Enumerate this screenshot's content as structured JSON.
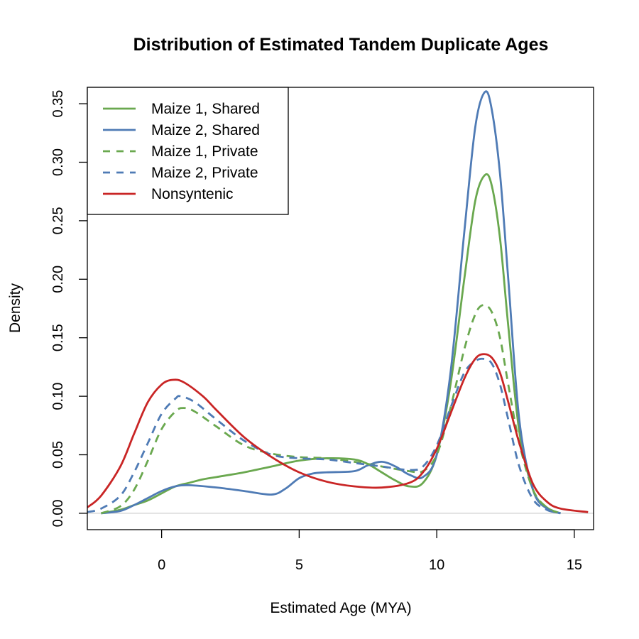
{
  "chart_data": {
    "type": "line",
    "title": "Distribution of Estimated Tandem Duplicate Ages",
    "xlabel": "Estimated Age (MYA)",
    "ylabel": "Density",
    "xlim": [
      -2.7,
      15.7
    ],
    "ylim": [
      -0.014,
      0.364
    ],
    "x_ticks": [
      0,
      5,
      10,
      15
    ],
    "x_tick_labels": [
      "0",
      "5",
      "10",
      "15"
    ],
    "y_ticks": [
      0.0,
      0.05,
      0.1,
      0.15,
      0.2,
      0.25,
      0.3,
      0.35
    ],
    "y_tick_labels": [
      "0.00",
      "0.05",
      "0.10",
      "0.15",
      "0.20",
      "0.25",
      "0.30",
      "0.35"
    ],
    "baseline_y": 0,
    "legend_position": "top-left",
    "series": [
      {
        "name": "Maize 1, Shared",
        "color": "#6aa84f",
        "dash": "solid",
        "points": [
          [
            -2.2,
            0.0
          ],
          [
            -1.5,
            0.003
          ],
          [
            -1.0,
            0.007
          ],
          [
            -0.5,
            0.011
          ],
          [
            0,
            0.017
          ],
          [
            0.5,
            0.023
          ],
          [
            1,
            0.026
          ],
          [
            1.5,
            0.029
          ],
          [
            2,
            0.031
          ],
          [
            3,
            0.035
          ],
          [
            4,
            0.04
          ],
          [
            5,
            0.045
          ],
          [
            6,
            0.047
          ],
          [
            7,
            0.046
          ],
          [
            7.5,
            0.042
          ],
          [
            8,
            0.035
          ],
          [
            8.5,
            0.028
          ],
          [
            9,
            0.023
          ],
          [
            9.5,
            0.026
          ],
          [
            10,
            0.05
          ],
          [
            10.5,
            0.11
          ],
          [
            11,
            0.2
          ],
          [
            11.4,
            0.267
          ],
          [
            11.75,
            0.289
          ],
          [
            12.0,
            0.28
          ],
          [
            12.3,
            0.235
          ],
          [
            12.6,
            0.16
          ],
          [
            13.0,
            0.07
          ],
          [
            13.5,
            0.02
          ],
          [
            14.0,
            0.005
          ],
          [
            14.5,
            0.0
          ]
        ]
      },
      {
        "name": "Maize 2, Shared",
        "color": "#4f7bb5",
        "dash": "solid",
        "points": [
          [
            -2.2,
            0.0
          ],
          [
            -1.5,
            0.002
          ],
          [
            -1.0,
            0.007
          ],
          [
            -0.5,
            0.013
          ],
          [
            0,
            0.019
          ],
          [
            0.5,
            0.023
          ],
          [
            1,
            0.024
          ],
          [
            2,
            0.022
          ],
          [
            3,
            0.019
          ],
          [
            4,
            0.016
          ],
          [
            4.5,
            0.021
          ],
          [
            5,
            0.03
          ],
          [
            5.5,
            0.034
          ],
          [
            6,
            0.035
          ],
          [
            7,
            0.036
          ],
          [
            7.5,
            0.041
          ],
          [
            8,
            0.044
          ],
          [
            8.5,
            0.04
          ],
          [
            9,
            0.033
          ],
          [
            9.5,
            0.031
          ],
          [
            10,
            0.05
          ],
          [
            10.5,
            0.12
          ],
          [
            11,
            0.24
          ],
          [
            11.4,
            0.33
          ],
          [
            11.75,
            0.36
          ],
          [
            12.0,
            0.345
          ],
          [
            12.3,
            0.29
          ],
          [
            12.6,
            0.2
          ],
          [
            13.0,
            0.08
          ],
          [
            13.5,
            0.02
          ],
          [
            14.0,
            0.004
          ],
          [
            14.5,
            0.0
          ]
        ]
      },
      {
        "name": "Maize 1, Private",
        "color": "#6aa84f",
        "dash": "dashed",
        "points": [
          [
            -2.2,
            0.0
          ],
          [
            -1.5,
            0.006
          ],
          [
            -1.0,
            0.02
          ],
          [
            -0.5,
            0.045
          ],
          [
            0,
            0.072
          ],
          [
            0.5,
            0.087
          ],
          [
            0.8,
            0.09
          ],
          [
            1.2,
            0.087
          ],
          [
            2,
            0.074
          ],
          [
            3,
            0.058
          ],
          [
            4,
            0.051
          ],
          [
            5,
            0.048
          ],
          [
            6,
            0.047
          ],
          [
            7,
            0.044
          ],
          [
            8,
            0.04
          ],
          [
            9,
            0.036
          ],
          [
            9.5,
            0.036
          ],
          [
            10,
            0.05
          ],
          [
            10.5,
            0.09
          ],
          [
            11,
            0.14
          ],
          [
            11.4,
            0.17
          ],
          [
            11.7,
            0.178
          ],
          [
            12.0,
            0.172
          ],
          [
            12.3,
            0.15
          ],
          [
            12.6,
            0.11
          ],
          [
            13.0,
            0.06
          ],
          [
            13.5,
            0.02
          ],
          [
            14.0,
            0.005
          ],
          [
            14.5,
            0.0
          ]
        ]
      },
      {
        "name": "Maize 2, Private",
        "color": "#4f7bb5",
        "dash": "dashed",
        "points": [
          [
            -2.7,
            0.001
          ],
          [
            -2.2,
            0.004
          ],
          [
            -1.5,
            0.015
          ],
          [
            -1.0,
            0.035
          ],
          [
            -0.5,
            0.06
          ],
          [
            0,
            0.085
          ],
          [
            0.5,
            0.098
          ],
          [
            0.7,
            0.1
          ],
          [
            1.2,
            0.095
          ],
          [
            2,
            0.08
          ],
          [
            3,
            0.062
          ],
          [
            4,
            0.05
          ],
          [
            5,
            0.047
          ],
          [
            6,
            0.046
          ],
          [
            7,
            0.043
          ],
          [
            8,
            0.04
          ],
          [
            9,
            0.037
          ],
          [
            9.5,
            0.04
          ],
          [
            10,
            0.058
          ],
          [
            10.5,
            0.09
          ],
          [
            11,
            0.12
          ],
          [
            11.4,
            0.13
          ],
          [
            11.7,
            0.132
          ],
          [
            12.0,
            0.128
          ],
          [
            12.3,
            0.11
          ],
          [
            12.6,
            0.08
          ],
          [
            13.0,
            0.04
          ],
          [
            13.5,
            0.012
          ],
          [
            14.0,
            0.003
          ],
          [
            14.5,
            0.0
          ]
        ]
      },
      {
        "name": "Nonsyntenic",
        "color": "#c92525",
        "dash": "solid",
        "points": [
          [
            -2.7,
            0.005
          ],
          [
            -2.2,
            0.015
          ],
          [
            -1.5,
            0.04
          ],
          [
            -1.0,
            0.068
          ],
          [
            -0.5,
            0.095
          ],
          [
            0,
            0.11
          ],
          [
            0.4,
            0.114
          ],
          [
            0.8,
            0.112
          ],
          [
            1.5,
            0.1
          ],
          [
            2,
            0.088
          ],
          [
            3,
            0.065
          ],
          [
            4,
            0.048
          ],
          [
            5,
            0.035
          ],
          [
            6,
            0.027
          ],
          [
            7,
            0.023
          ],
          [
            8,
            0.022
          ],
          [
            9,
            0.026
          ],
          [
            9.5,
            0.035
          ],
          [
            10,
            0.055
          ],
          [
            10.5,
            0.085
          ],
          [
            11,
            0.115
          ],
          [
            11.4,
            0.132
          ],
          [
            11.7,
            0.136
          ],
          [
            12.0,
            0.133
          ],
          [
            12.3,
            0.12
          ],
          [
            12.6,
            0.095
          ],
          [
            13.0,
            0.06
          ],
          [
            13.5,
            0.025
          ],
          [
            14.0,
            0.01
          ],
          [
            14.5,
            0.004
          ],
          [
            15.5,
            0.001
          ]
        ]
      }
    ]
  }
}
